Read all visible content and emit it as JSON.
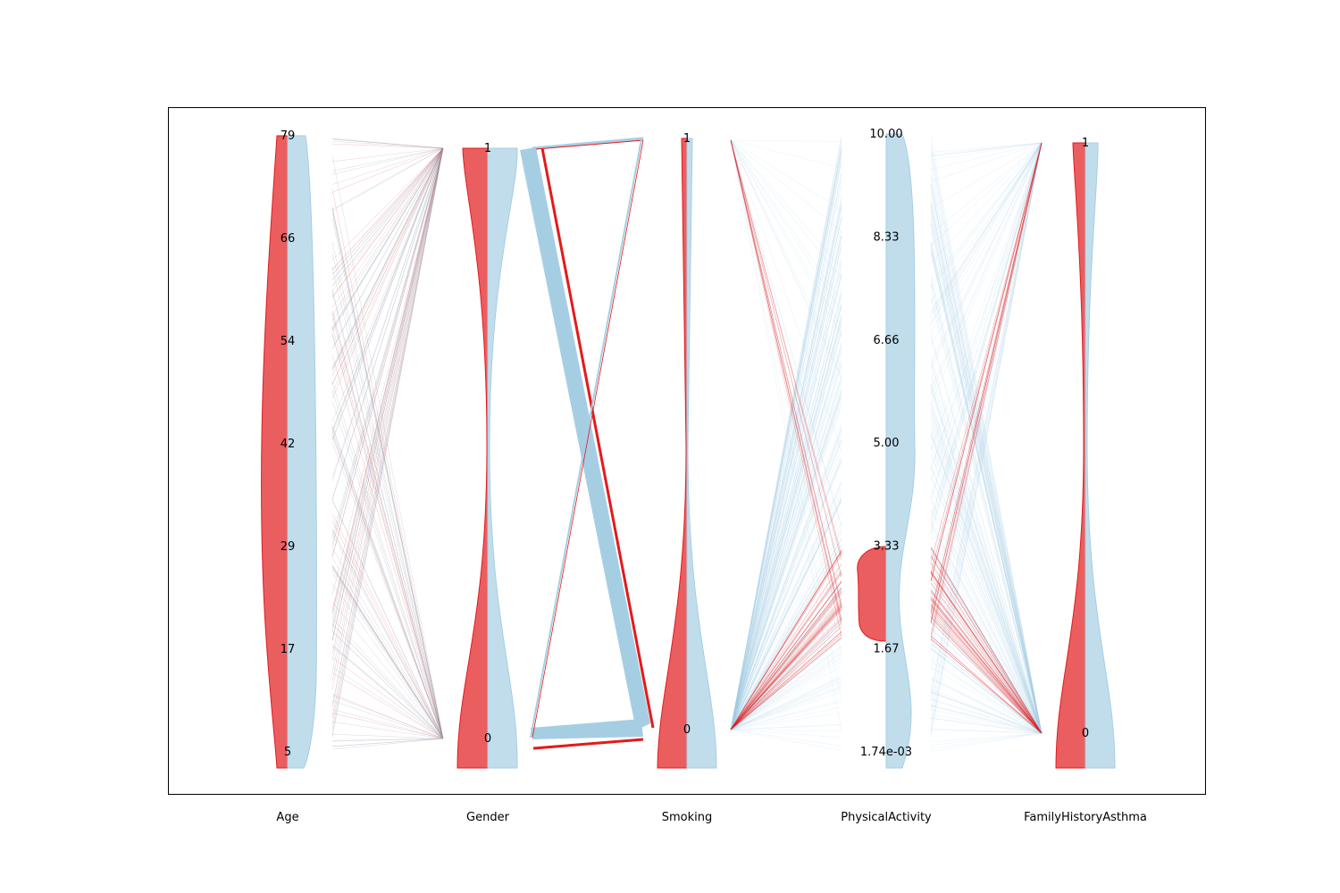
{
  "chart_data": {
    "type": "parallel-coordinates",
    "title": "",
    "colors": {
      "asthma": "#e31a1c",
      "no_asthma": "#a6cee3",
      "frame": "#000000"
    },
    "axes": [
      {
        "name": "Age",
        "range": [
          5,
          79
        ],
        "tick_labels": [
          "5",
          "17",
          "29",
          "42",
          "54",
          "66",
          "79"
        ],
        "tick_values": [
          5,
          17.33,
          29.67,
          42,
          54.33,
          66.67,
          79
        ]
      },
      {
        "name": "Gender",
        "range": [
          0,
          1
        ],
        "tick_labels": [
          "0",
          "1"
        ],
        "tick_values": [
          0,
          1
        ]
      },
      {
        "name": "Smoking",
        "range": [
          0,
          1
        ],
        "tick_labels": [
          "0",
          "1"
        ],
        "tick_values": [
          0,
          1
        ]
      },
      {
        "name": "PhysicalActivity",
        "range": [
          0.00174,
          10
        ],
        "tick_labels": [
          "1.74e-03",
          "1.67",
          "3.33",
          "5.00",
          "6.66",
          "8.33",
          "10.00"
        ],
        "tick_values": [
          0.00174,
          1.67,
          3.33,
          5.0,
          6.66,
          8.33,
          10.0
        ]
      },
      {
        "name": "FamilyHistoryAsthma",
        "range": [
          0,
          1
        ],
        "tick_labels": [
          "0",
          "1"
        ],
        "tick_values": [
          0,
          1
        ]
      }
    ],
    "series": [
      {
        "class": "asthma",
        "density_side": "left"
      },
      {
        "class": "no_asthma",
        "density_side": "right"
      }
    ]
  }
}
